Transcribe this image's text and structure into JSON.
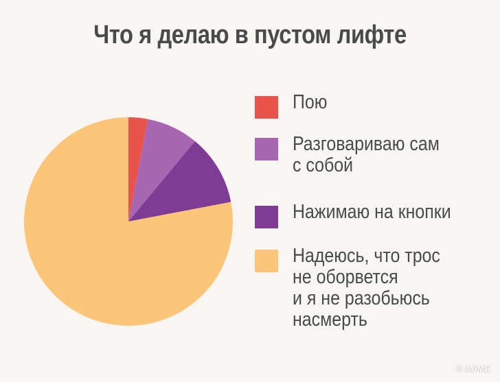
{
  "title": "Что я делаю в пустом лифте",
  "watermark": "© ADME",
  "chart_data": {
    "type": "pie",
    "title": "Что я делаю в пустом лифте",
    "slices": [
      {
        "label": "Пою",
        "value": 3,
        "color": "#e8544b"
      },
      {
        "label": "Разговариваю сам\nс собой",
        "value": 8,
        "color": "#a865b1"
      },
      {
        "label": "Нажимаю на кнопки",
        "value": 11,
        "color": "#7f3c94"
      },
      {
        "label": "Надеюсь, что трос\nне оборвется\nи я не разобьюсь\nнасмерть",
        "value": 78,
        "color": "#fcc57a"
      }
    ],
    "legend_position": "right",
    "start_angle": "top",
    "direction": "clockwise"
  }
}
